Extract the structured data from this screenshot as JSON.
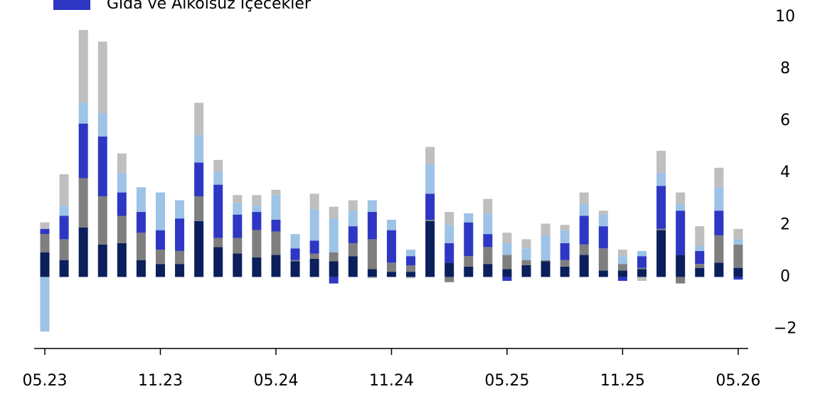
{
  "chart_data": {
    "type": "stacked-bar",
    "categories": [
      "05.23",
      null,
      null,
      null,
      null,
      null,
      "11.23",
      null,
      null,
      null,
      null,
      null,
      "05.24",
      null,
      null,
      null,
      null,
      null,
      "11.24",
      null,
      null,
      null,
      null,
      null,
      "05.25",
      null,
      null,
      null,
      null,
      null,
      "11.25",
      null,
      null,
      null,
      null,
      null,
      "05.26"
    ],
    "series": [
      {
        "color": "#0b1f5c",
        "values": [
          0.95,
          0.65,
          1.9,
          1.25,
          1.3,
          0.65,
          0.5,
          0.5,
          2.15,
          1.15,
          0.9,
          0.75,
          0.85,
          0.6,
          0.7,
          0.6,
          0.8,
          0.3,
          0.2,
          0.2,
          2.15,
          0.55,
          0.4,
          0.5,
          0.3,
          0.45,
          0.6,
          0.4,
          0.85,
          0.25,
          0.25,
          0.3,
          1.8,
          0.85,
          0.35,
          0.55,
          0.35
        ]
      },
      {
        "color": "#7f7f7f",
        "values": [
          0.7,
          0.8,
          1.9,
          1.85,
          1.05,
          1.05,
          0.55,
          0.5,
          0.95,
          0.35,
          0.6,
          1.05,
          0.9,
          0.05,
          0.2,
          0.35,
          0.5,
          1.15,
          0.35,
          0.25,
          0.05,
          -0.2,
          0.4,
          0.65,
          0.55,
          0.2,
          0.05,
          0.25,
          0.4,
          0.85,
          0.25,
          0.05,
          0.05,
          -0.25,
          0.15,
          1.05,
          0.9
        ]
      },
      {
        "name": "Gıda ve Alkolsüz İçecekler",
        "color": "#2e37c4",
        "values": [
          0.2,
          0.9,
          2.1,
          2.3,
          0.9,
          0.8,
          0.75,
          1.25,
          1.3,
          2.05,
          0.9,
          0.7,
          0.45,
          0.45,
          0.5,
          -0.25,
          0.65,
          1.05,
          1.25,
          0.35,
          1.0,
          0.75,
          1.3,
          0.5,
          -0.15,
          0,
          0,
          0.65,
          1.1,
          0.85,
          -0.15,
          0.45,
          1.65,
          1.7,
          0.5,
          0.95,
          -0.1
        ]
      },
      {
        "color": "#9dc3e6",
        "values": [
          -2.1,
          0.4,
          0.8,
          0.9,
          0.75,
          0.95,
          1.45,
          0.7,
          1.05,
          0.5,
          0.45,
          0.25,
          0.95,
          0.55,
          1.2,
          1.3,
          0.6,
          0.45,
          0.4,
          0.25,
          1.15,
          0.7,
          0.35,
          0.8,
          0.45,
          0.45,
          0.95,
          0.5,
          0.45,
          0.45,
          0.3,
          0.2,
          0.5,
          0.25,
          0.2,
          0.9,
          0.2
        ]
      },
      {
        "color": "#bfbfbf",
        "values": [
          0.25,
          1.2,
          2.8,
          2.75,
          0.75,
          0,
          0,
          0,
          1.25,
          0.45,
          0.3,
          0.4,
          0.2,
          0,
          0.6,
          0.45,
          0.4,
          -0.05,
          0,
          -0.05,
          0.65,
          0.5,
          0,
          0.55,
          0.4,
          0.35,
          0.45,
          0.2,
          0.45,
          0.15,
          0.25,
          -0.15,
          0.85,
          0.45,
          0.75,
          0.75,
          0.4
        ]
      }
    ],
    "ylim": [
      -2.75,
      10.65
    ],
    "yticks": [
      {
        "value": -2,
        "label": "−2"
      },
      0,
      2,
      4,
      6,
      8,
      10
    ]
  }
}
